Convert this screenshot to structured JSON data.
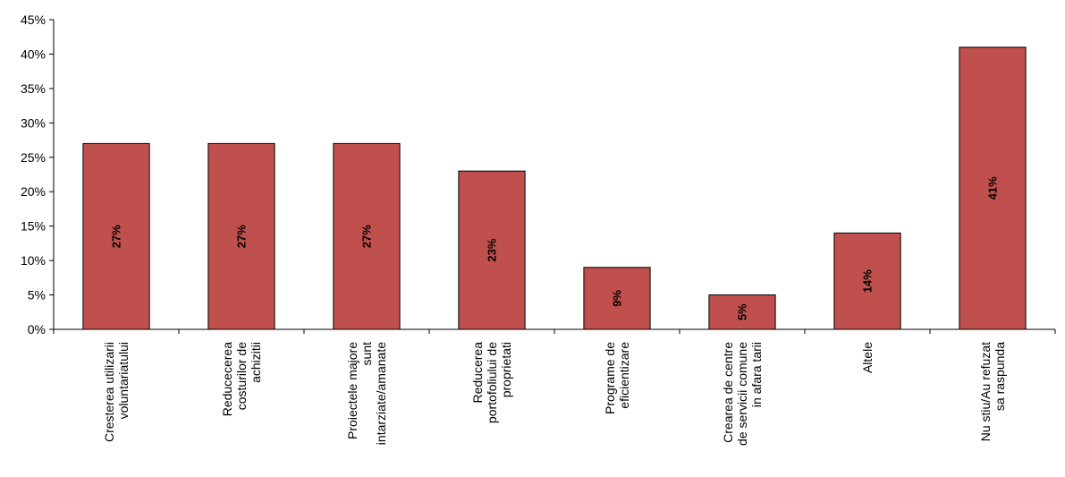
{
  "chart_data": {
    "type": "bar",
    "categories": [
      [
        "Cresterea utilizarii",
        "voluntariatului"
      ],
      [
        "Reducecerea",
        "costurilor de",
        "achizitii"
      ],
      [
        "Proiectele majore",
        "sunt",
        "intarziate/amanate"
      ],
      [
        "Reducerea",
        "portofoliului de",
        "proprietati"
      ],
      [
        "Programe de",
        "eficientizare"
      ],
      [
        "Crearea de centre",
        "de servicii comune",
        "in afara tarii"
      ],
      [
        "Altele"
      ],
      [
        "Nu stiu/Au refuzat",
        "sa raspunda"
      ]
    ],
    "values": [
      27,
      27,
      27,
      23,
      9,
      5,
      14,
      41
    ],
    "data_labels": [
      "27%",
      "27%",
      "27%",
      "23%",
      "9%",
      "5%",
      "14%",
      "41%"
    ],
    "yticks": [
      "0%",
      "5%",
      "10%",
      "15%",
      "20%",
      "25%",
      "30%",
      "35%",
      "40%",
      "45%"
    ],
    "ylim": [
      0,
      45
    ],
    "bar_color": "#C0504D",
    "title": "",
    "xlabel": "",
    "ylabel": ""
  }
}
